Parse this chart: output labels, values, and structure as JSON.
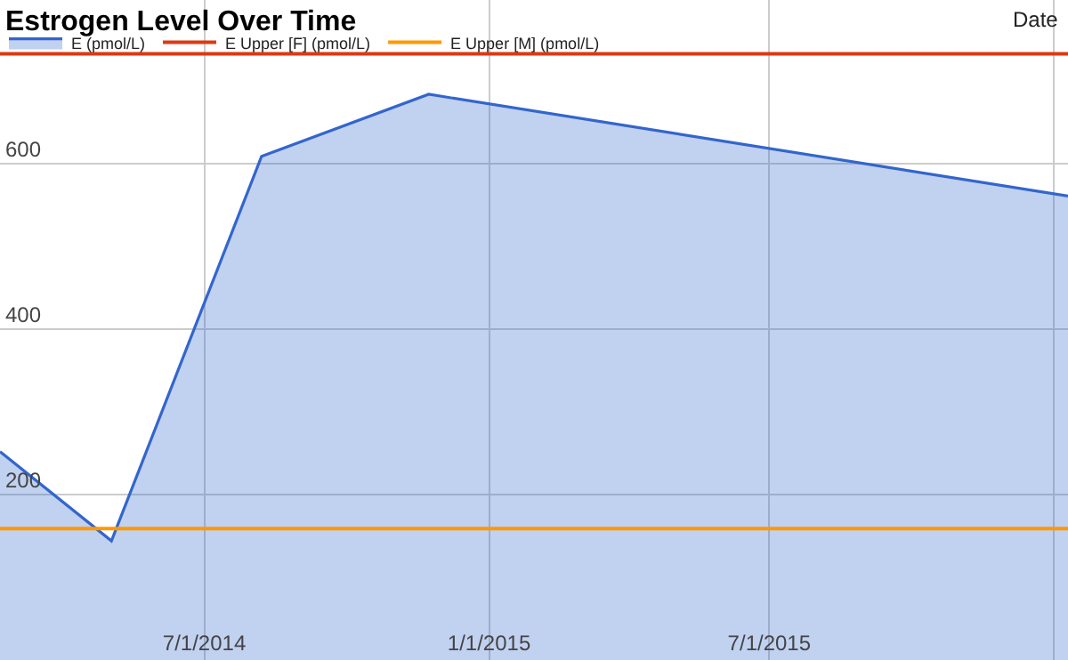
{
  "chart_data": {
    "type": "line",
    "title": "Estrogen Level Over Time",
    "xlabel": "Date",
    "x": [
      "2014-02-19",
      "2014-05-02",
      "2014-08-07",
      "2014-11-23",
      "2016-01-10"
    ],
    "series": [
      {
        "name": "E (pmol/L)",
        "type": "area",
        "color": "#3366cc",
        "values": [
          252,
          144,
          609,
          684,
          561
        ]
      },
      {
        "name": "E Upper [F] (pmol/L)",
        "color": "#dc3912",
        "values": [
          733,
          733,
          733,
          733,
          733
        ]
      },
      {
        "name": "E Upper [M] (pmol/L)",
        "color": "#ff9900",
        "values": [
          159,
          159,
          159,
          159,
          159
        ]
      }
    ],
    "xlim": [
      "2014-02-19",
      "2016-01-10"
    ],
    "xticks": [
      {
        "value": "2014-07-01",
        "label": "7/1/2014"
      },
      {
        "value": "2015-01-01",
        "label": "1/1/2015"
      },
      {
        "value": "2015-07-01",
        "label": "7/1/2015"
      },
      {
        "value": "2016-01-01",
        "label": null
      }
    ],
    "ylim": [
      0,
      798
    ],
    "yticks": [
      200,
      400,
      600
    ],
    "grid": true,
    "legend": "top left",
    "marker": "none",
    "line_style": "solid"
  }
}
